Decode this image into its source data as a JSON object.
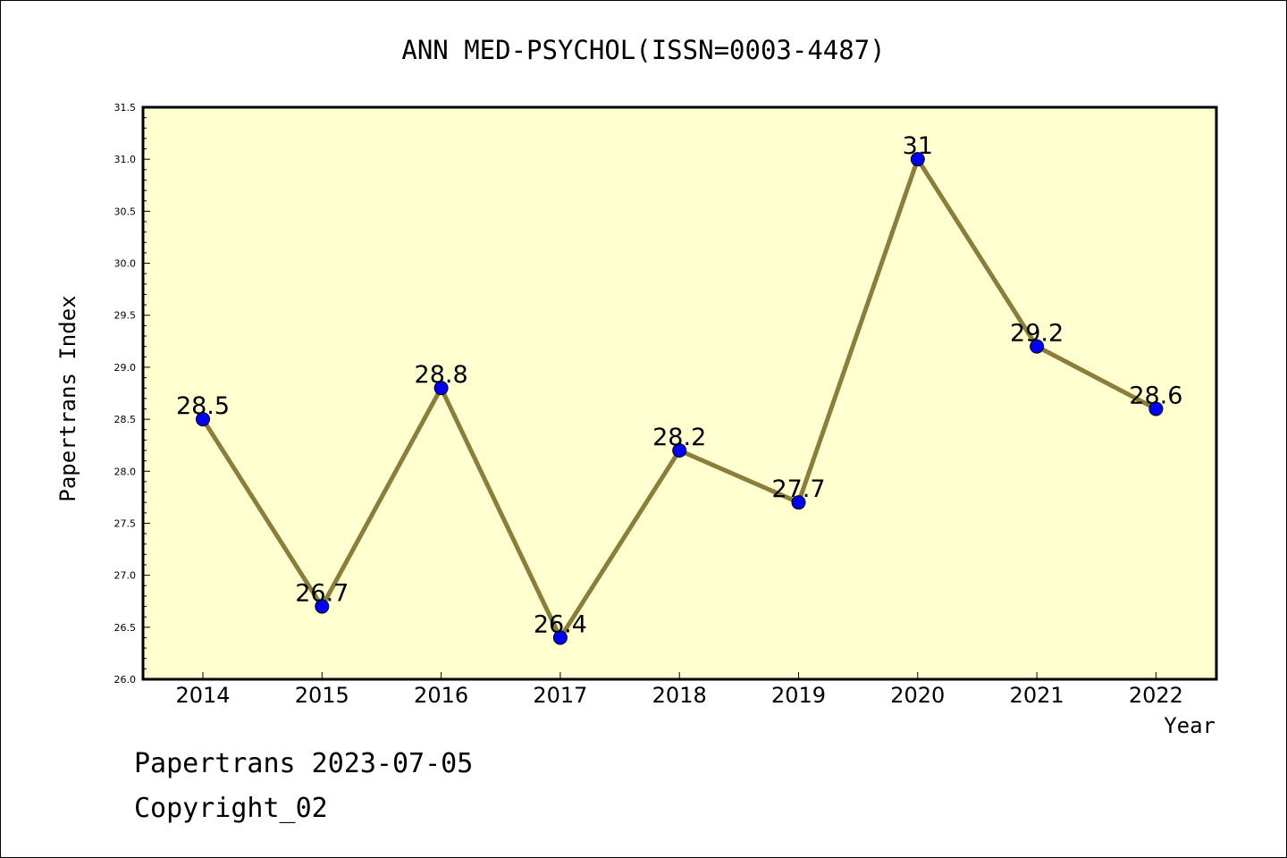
{
  "chart_data": {
    "type": "line",
    "title": "ANN MED-PSYCHOL(ISSN=0003-4487)",
    "xlabel": "Year",
    "ylabel": "Papertrans Index",
    "categories": [
      "2014",
      "2015",
      "2016",
      "2017",
      "2018",
      "2019",
      "2020",
      "2021",
      "2022"
    ],
    "values": [
      28.5,
      26.7,
      28.8,
      26.4,
      28.2,
      27.7,
      31,
      29.2,
      28.6
    ],
    "data_labels": [
      "28.5",
      "26.7",
      "28.8",
      "26.4",
      "28.2",
      "27.7",
      "31",
      "29.2",
      "28.6"
    ],
    "ylim": [
      26.0,
      31.5
    ],
    "yticks": [
      "26.0",
      "26.5",
      "27.0",
      "27.5",
      "28.0",
      "28.5",
      "29.0",
      "29.5",
      "30.0",
      "30.5",
      "31.0",
      "31.5"
    ],
    "grid": false,
    "colors": {
      "plot_background": "#ffffd0",
      "line": "#8b7d3a",
      "marker": "#0000ff"
    }
  },
  "footer": {
    "line1": "Papertrans 2023-07-05",
    "line2": "Copyright_02"
  }
}
